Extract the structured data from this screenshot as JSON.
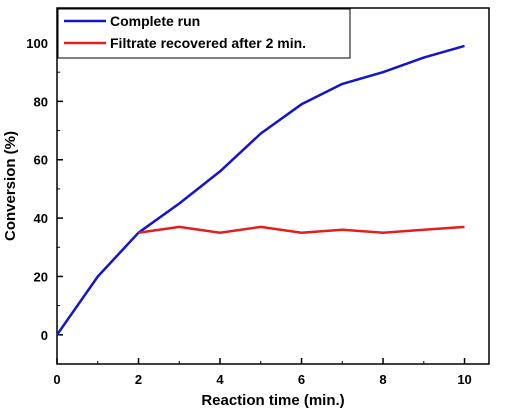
{
  "chart_data": {
    "type": "line",
    "title": "",
    "xlabel": "Reaction time (min.)",
    "ylabel": "Conversion (%)",
    "xlim": [
      0,
      10.6
    ],
    "ylim": [
      -10,
      112
    ],
    "x_ticks": [
      0,
      2,
      4,
      6,
      8,
      10
    ],
    "y_ticks": [
      0,
      20,
      40,
      60,
      80,
      100
    ],
    "grid": false,
    "legend_position": "top-left",
    "series": [
      {
        "name": "Complete run",
        "color": "#1515c8",
        "x": [
          0,
          1,
          2,
          3,
          4,
          5,
          6,
          7,
          8,
          9,
          10
        ],
        "y": [
          0,
          20,
          35,
          45,
          56,
          69,
          79,
          86,
          90,
          95,
          99
        ]
      },
      {
        "name": "Filtrate recovered after 2 min.",
        "color": "#e02020",
        "x": [
          2,
          3,
          4,
          5,
          6,
          7,
          8,
          9,
          10
        ],
        "y": [
          35,
          37,
          35,
          37,
          35,
          36,
          35,
          36,
          37
        ]
      }
    ]
  }
}
